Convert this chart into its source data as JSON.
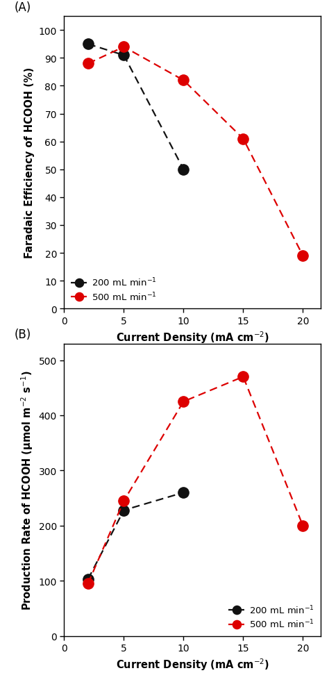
{
  "panel_A": {
    "black_x": [
      2,
      5,
      10
    ],
    "black_y": [
      95,
      91,
      50
    ],
    "red_x": [
      2,
      5,
      10,
      15,
      20
    ],
    "red_y": [
      88,
      94,
      82,
      61,
      19
    ],
    "ylabel": "Faradaic Efficiency of HCOOH (%)",
    "xlabel": "Current Density (mA cm$^{-2}$)",
    "ylim": [
      0,
      105
    ],
    "yticks": [
      0,
      10,
      20,
      30,
      40,
      50,
      60,
      70,
      80,
      90,
      100
    ],
    "xlim": [
      0.5,
      21.5
    ],
    "xticks": [
      0,
      5,
      10,
      15,
      20
    ],
    "label_black": "200 mL min$^{-1}$",
    "label_red": "500 mL min$^{-1}$",
    "panel_label": "(A)",
    "legend_loc": "lower left"
  },
  "panel_B": {
    "black_x": [
      2,
      5,
      10
    ],
    "black_y": [
      103,
      228,
      260
    ],
    "red_x": [
      2,
      5,
      10,
      15,
      20
    ],
    "red_y": [
      95,
      245,
      425,
      470,
      200
    ],
    "ylabel": "Production Rate of HCOOH (μmol m$^{-2}$ s$^{-1}$)",
    "xlabel": "Current Density (mA cm$^{-2}$)",
    "ylim": [
      0,
      530
    ],
    "yticks": [
      0,
      100,
      200,
      300,
      400,
      500
    ],
    "xlim": [
      0.5,
      21.5
    ],
    "xticks": [
      0,
      5,
      10,
      15,
      20
    ],
    "label_black": "200 mL min$^{-1}$",
    "label_red": "500 mL min$^{-1}$",
    "panel_label": "(B)",
    "legend_loc": "lower right"
  },
  "black_color": "#111111",
  "red_color": "#dd0000",
  "marker_size": 11,
  "line_width": 1.6,
  "dash_pattern": [
    5,
    3
  ],
  "font_size_label": 10.5,
  "font_size_tick": 10,
  "font_size_legend": 9.5,
  "font_size_panel": 12
}
